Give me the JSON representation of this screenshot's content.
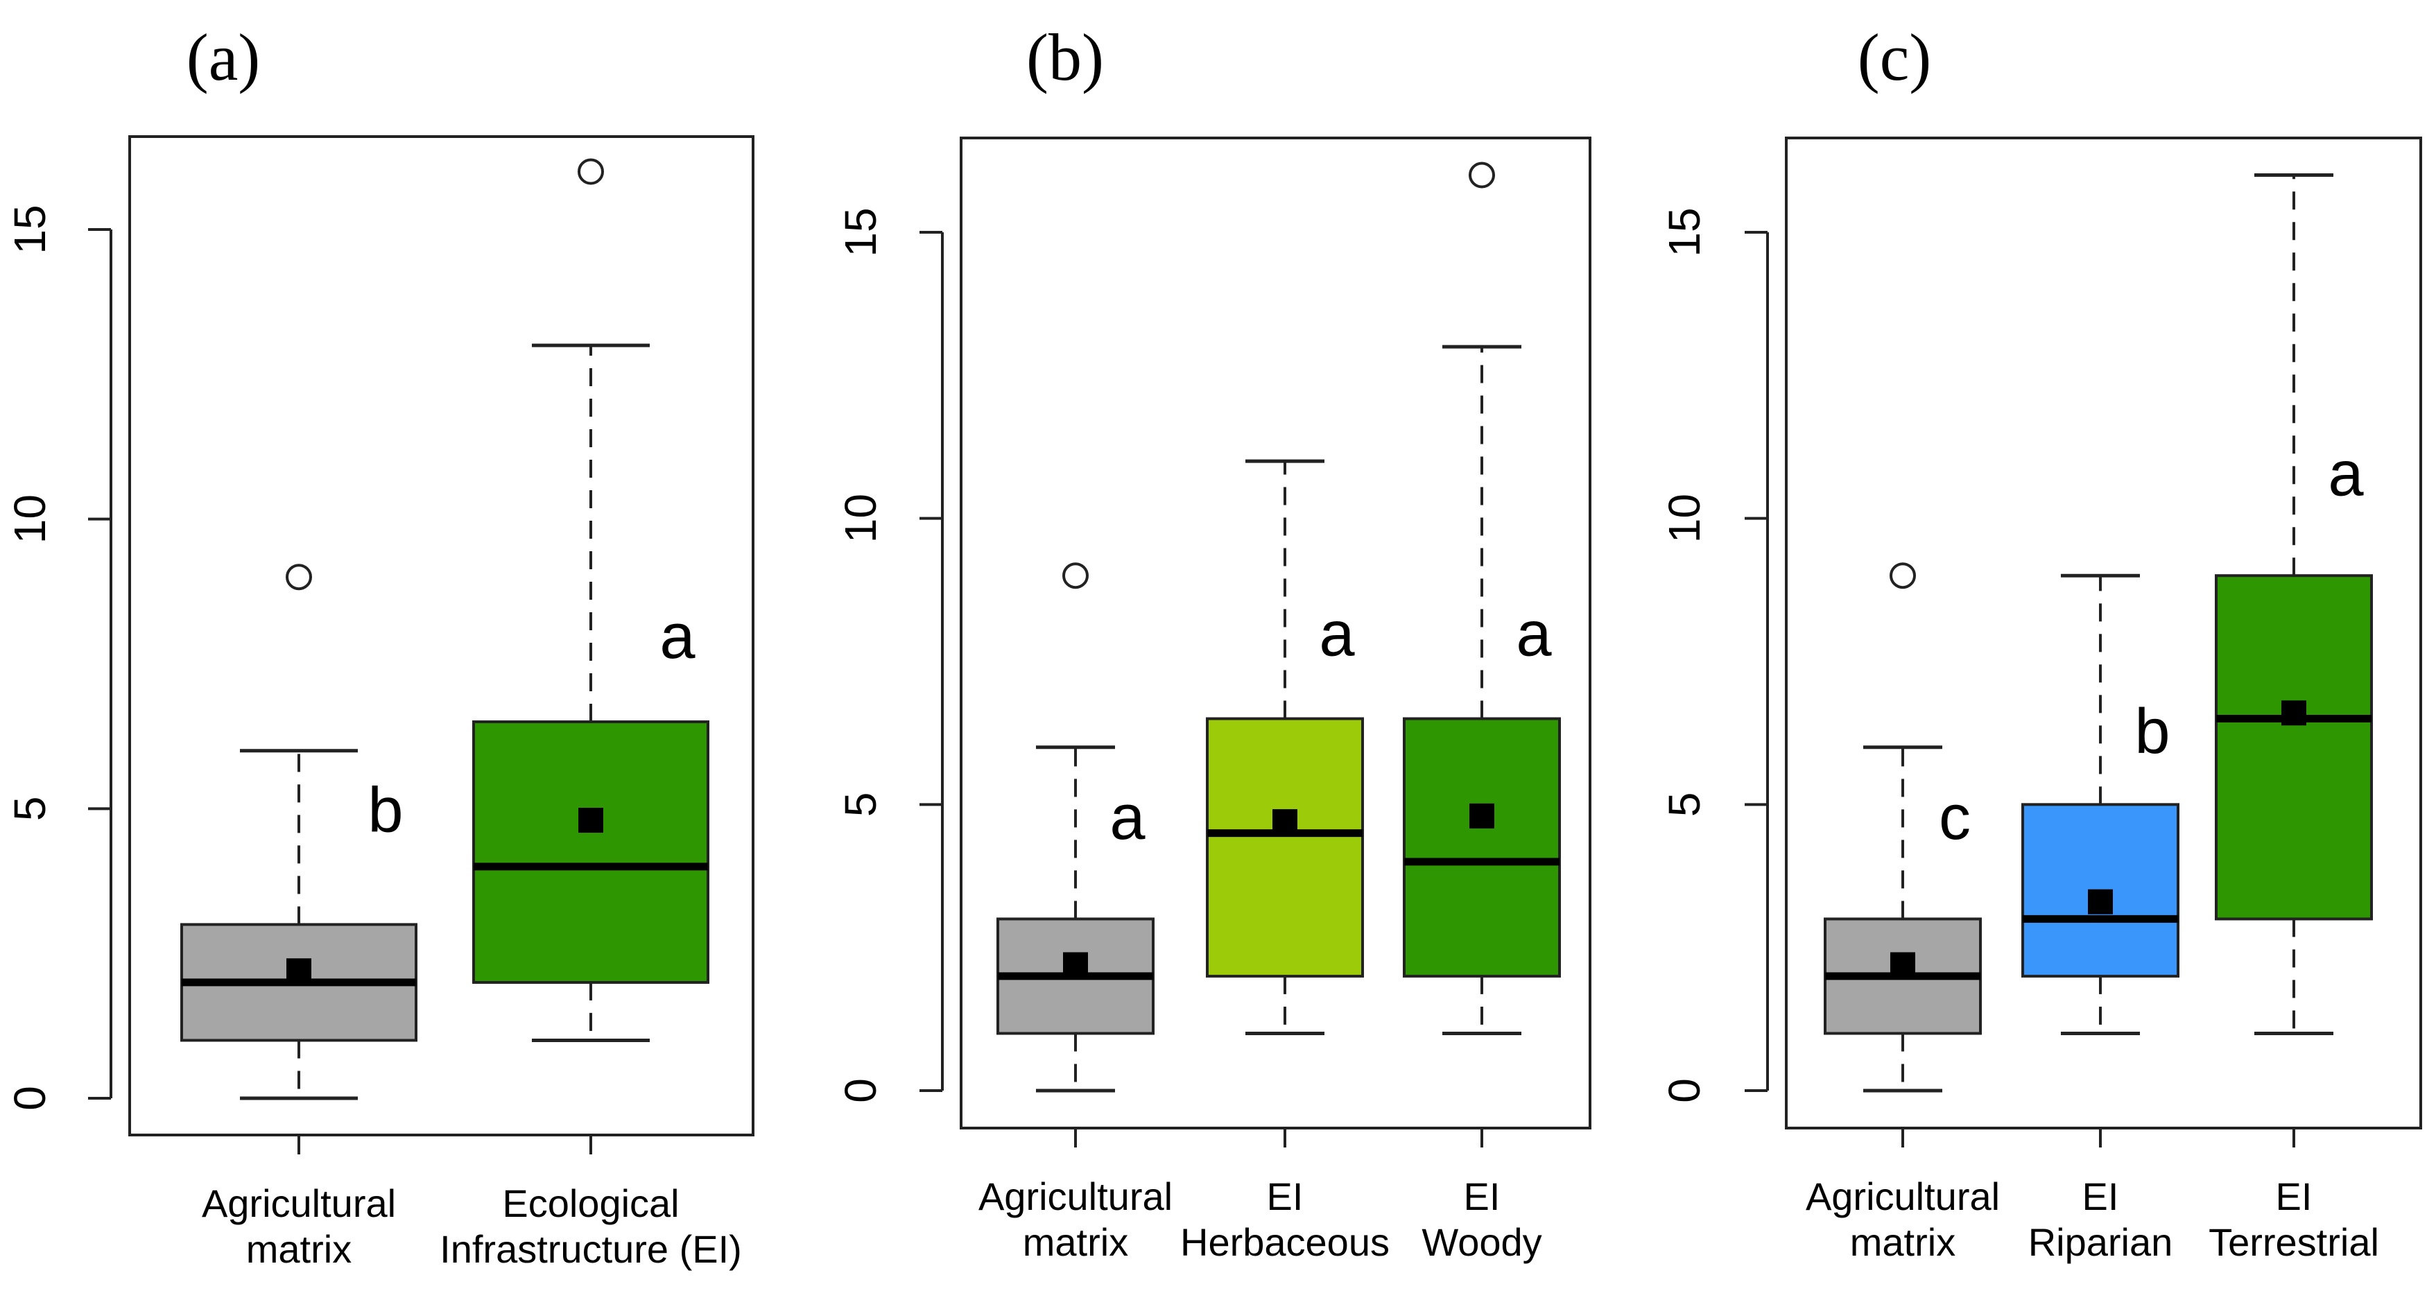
{
  "chart_data": [
    {
      "panel_label": "(a)",
      "type": "boxplot",
      "ylim": [
        0,
        17
      ],
      "yticks": [
        0,
        5,
        10,
        15
      ],
      "ytick_labels": [
        "0",
        "5",
        "10",
        "15"
      ],
      "groups": [
        {
          "label_lines": [
            "Agricultural",
            "matrix"
          ],
          "color": "#a6a6a6",
          "min": 0,
          "q1": 1,
          "median": 2,
          "q3": 3,
          "max": 6,
          "mean": 2.2,
          "outliers": [
            9
          ],
          "letter": "b",
          "letter_y": 4.6
        },
        {
          "label_lines": [
            "Ecological",
            "Infrastructure (EI)"
          ],
          "color": "#2e9600",
          "min": 1,
          "q1": 2,
          "median": 4,
          "q3": 6.5,
          "max": 13,
          "mean": 4.8,
          "outliers": [
            16
          ],
          "letter": "a",
          "letter_y": 7.6
        }
      ]
    },
    {
      "panel_label": "(b)",
      "type": "boxplot",
      "ylim": [
        0,
        17
      ],
      "yticks": [
        0,
        5,
        10,
        15
      ],
      "ytick_labels": [
        "0",
        "5",
        "10",
        "15"
      ],
      "groups": [
        {
          "label_lines": [
            "Agricultural",
            "matrix"
          ],
          "color": "#a6a6a6",
          "min": 0,
          "q1": 1,
          "median": 2,
          "q3": 3,
          "max": 6,
          "mean": 2.2,
          "outliers": [
            9
          ],
          "letter": "a",
          "letter_y": 4.4
        },
        {
          "label_lines": [
            "EI",
            "Herbaceous"
          ],
          "color": "#9ccc09",
          "min": 1,
          "q1": 2,
          "median": 4.5,
          "q3": 6.5,
          "max": 11,
          "mean": 4.7,
          "outliers": [],
          "letter": "a",
          "letter_y": 7.6
        },
        {
          "label_lines": [
            "EI",
            "Woody"
          ],
          "color": "#2e9600",
          "min": 1,
          "q1": 2,
          "median": 4,
          "q3": 6.5,
          "max": 13,
          "mean": 4.8,
          "outliers": [
            16
          ],
          "letter": "a",
          "letter_y": 7.6
        }
      ]
    },
    {
      "panel_label": "(c)",
      "type": "boxplot",
      "ylim": [
        0,
        17
      ],
      "yticks": [
        0,
        5,
        10,
        15
      ],
      "ytick_labels": [
        "0",
        "5",
        "10",
        "15"
      ],
      "groups": [
        {
          "label_lines": [
            "Agricultural",
            "matrix"
          ],
          "color": "#a6a6a6",
          "min": 0,
          "q1": 1,
          "median": 2,
          "q3": 3,
          "max": 6,
          "mean": 2.2,
          "outliers": [
            9
          ],
          "letter": "c",
          "letter_y": 4.4
        },
        {
          "label_lines": [
            "EI",
            "Riparian"
          ],
          "color": "#3b96fc",
          "min": 1,
          "q1": 2,
          "median": 3,
          "q3": 5,
          "max": 9,
          "mean": 3.3,
          "outliers": [],
          "letter": "b",
          "letter_y": 5.9
        },
        {
          "label_lines": [
            "EI",
            "Terrestrial"
          ],
          "color": "#2e9600",
          "min": 1,
          "q1": 3,
          "median": 6.5,
          "q3": 9,
          "max": 16,
          "mean": 6.6,
          "outliers": [],
          "letter": "a",
          "letter_y": 10.4
        }
      ]
    }
  ]
}
